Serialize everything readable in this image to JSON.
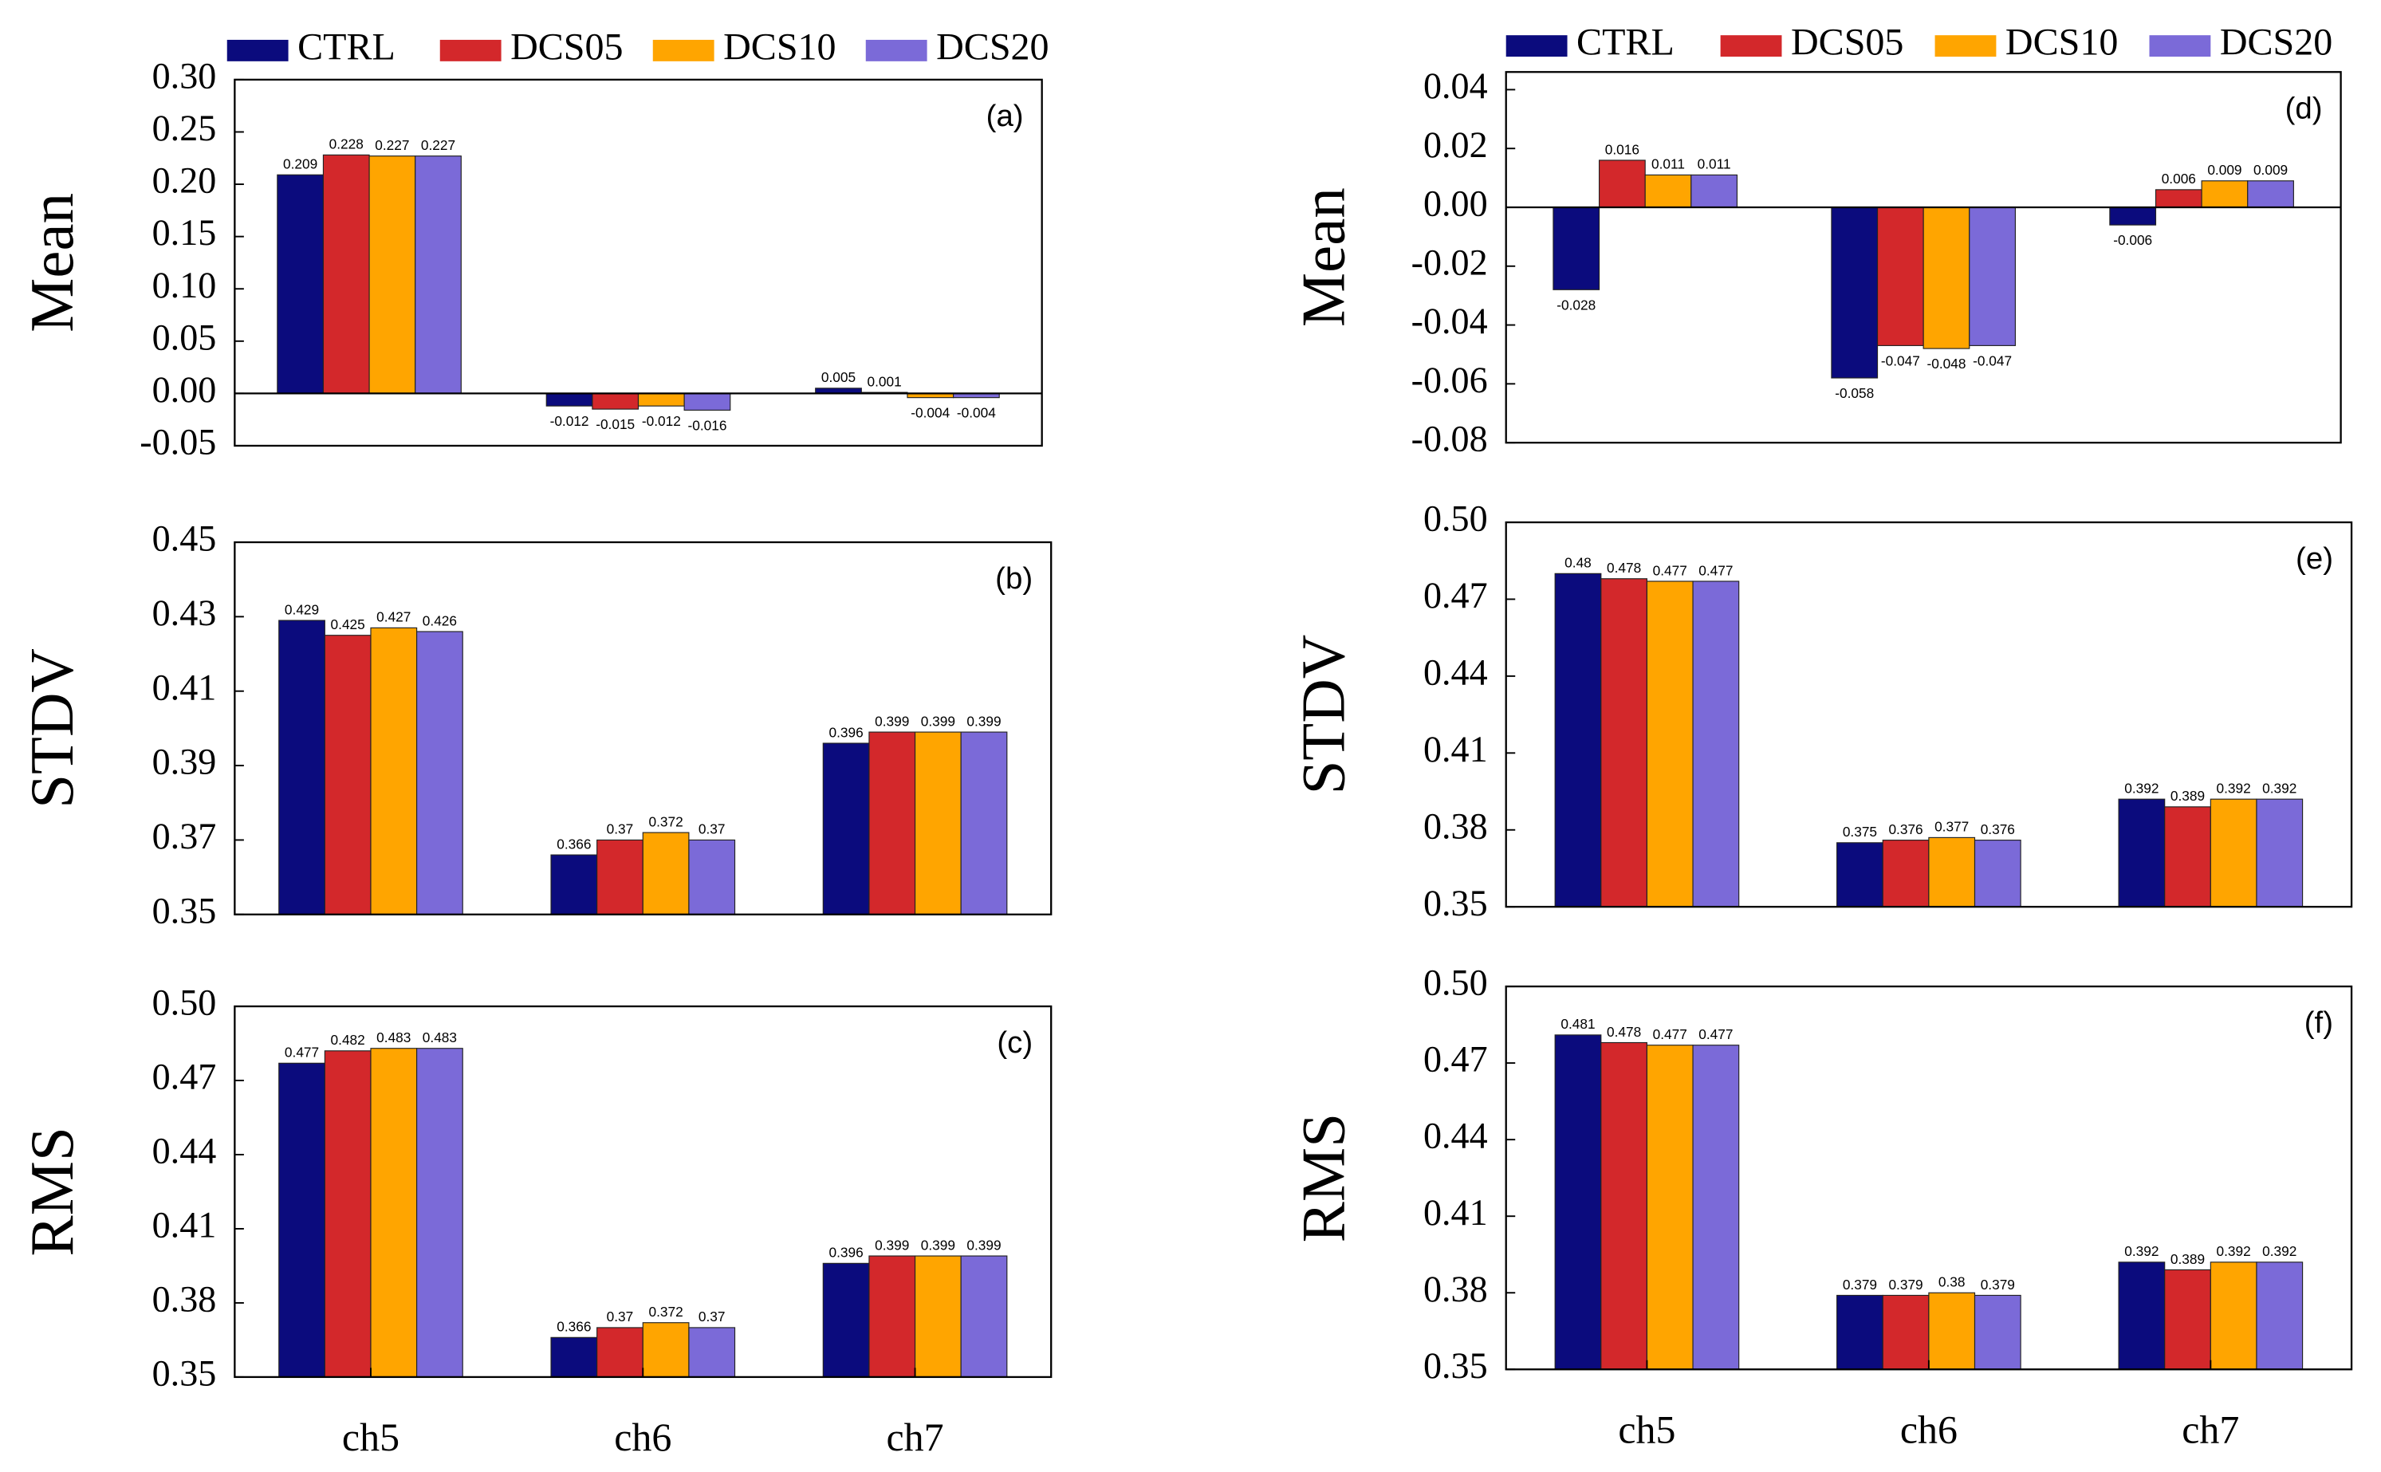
{
  "chart_data": [
    {
      "type": "bar",
      "panel_label": "(a)",
      "ylabel": "Mean",
      "series": [
        {
          "name": "CTRL",
          "color": "#0b0b7d",
          "values": [
            0.209,
            -0.012,
            0.005
          ]
        },
        {
          "name": "DCS05",
          "color": "#d3282b",
          "values": [
            0.228,
            -0.015,
            0.001
          ]
        },
        {
          "name": "DCS10",
          "color": "#ffa500",
          "values": [
            0.227,
            -0.012,
            -0.004
          ]
        },
        {
          "name": "DCS20",
          "color": "#7b6ad8",
          "values": [
            0.227,
            -0.016,
            -0.004
          ]
        }
      ],
      "ylim": [
        -0.05,
        0.3
      ],
      "yticks": [
        -0.05,
        {
          "value": 0,
          "label": "0.00"
        },
        0.05,
        {
          "value": 0.1,
          "label": "0.10"
        },
        0.15,
        {
          "value": 0.2,
          "label": "0.20"
        },
        0.25,
        {
          "value": 0.3,
          "label": "0.30"
        }
      ]
    },
    {
      "type": "bar",
      "panel_label": "(b)",
      "ylabel": "STDV",
      "series": [
        {
          "color": "#0b0b7d",
          "values": [
            0.429,
            0.366,
            0.396
          ]
        },
        {
          "color": "#d3282b",
          "values": [
            0.425,
            0.37,
            0.399
          ]
        },
        {
          "color": "#ffa500",
          "values": [
            0.427,
            0.372,
            0.399
          ]
        },
        {
          "color": "#7b6ad8",
          "values": [
            0.426,
            0.37,
            0.399
          ]
        }
      ],
      "ylim": [
        0.35,
        0.45
      ],
      "yticks": [
        0.35,
        0.37,
        0.39,
        0.41,
        0.43,
        0.45
      ]
    },
    {
      "type": "bar",
      "panel_label": "(c)",
      "ylabel": "RMS",
      "categories": [
        "ch5",
        "ch6",
        "ch7"
      ],
      "series": [
        {
          "color": "#0b0b7d",
          "values": [
            0.477,
            0.366,
            0.396
          ]
        },
        {
          "color": "#d3282b",
          "values": [
            0.482,
            0.37,
            0.399
          ]
        },
        {
          "color": "#ffa500",
          "values": [
            0.483,
            0.372,
            0.399
          ]
        },
        {
          "color": "#7b6ad8",
          "values": [
            0.483,
            0.37,
            0.399
          ]
        }
      ],
      "ylim": [
        0.35,
        0.5
      ],
      "yticks": [
        0.35,
        0.38,
        0.41,
        0.44,
        0.47,
        {
          "value": 0.5,
          "label": "0.50"
        }
      ]
    },
    {
      "type": "bar",
      "panel_label": "(d)",
      "ylabel": "Mean",
      "series": [
        {
          "name": "CTRL",
          "color": "#0b0b7d",
          "values": [
            -0.028,
            -0.058,
            -0.006
          ]
        },
        {
          "name": "DCS05",
          "color": "#d3282b",
          "values": [
            0.016,
            -0.047,
            0.006
          ]
        },
        {
          "name": "DCS10",
          "color": "#ffa500",
          "values": [
            0.011,
            -0.048,
            0.009
          ]
        },
        {
          "name": "DCS20",
          "color": "#7b6ad8",
          "values": [
            0.011,
            -0.047,
            0.009
          ]
        }
      ],
      "ylim": [
        -0.08,
        0.046
      ],
      "yticks": [
        -0.08,
        -0.06,
        -0.04,
        -0.02,
        {
          "value": 0,
          "label": "0.00"
        },
        0.02,
        0.04
      ]
    },
    {
      "type": "bar",
      "panel_label": "(e)",
      "ylabel": "STDV",
      "series": [
        {
          "color": "#0b0b7d",
          "values": [
            0.48,
            0.375,
            0.392
          ]
        },
        {
          "color": "#d3282b",
          "values": [
            0.478,
            0.376,
            0.389
          ]
        },
        {
          "color": "#ffa500",
          "values": [
            0.477,
            0.377,
            0.392
          ]
        },
        {
          "color": "#7b6ad8",
          "values": [
            0.477,
            0.376,
            0.392
          ]
        }
      ],
      "ylim": [
        0.35,
        0.5
      ],
      "yticks": [
        0.35,
        0.38,
        0.41,
        0.44,
        0.47,
        {
          "value": 0.5,
          "label": "0.50"
        }
      ]
    },
    {
      "type": "bar",
      "panel_label": "(f)",
      "ylabel": "RMS",
      "categories": [
        "ch5",
        "ch6",
        "ch7"
      ],
      "series": [
        {
          "color": "#0b0b7d",
          "values": [
            0.481,
            0.379,
            0.392
          ]
        },
        {
          "color": "#d3282b",
          "values": [
            0.478,
            0.379,
            0.389
          ]
        },
        {
          "color": "#ffa500",
          "values": [
            0.477,
            0.38,
            0.392
          ]
        },
        {
          "color": "#7b6ad8",
          "values": [
            0.477,
            0.379,
            0.392
          ]
        }
      ],
      "ylim": [
        0.35,
        0.5
      ],
      "yticks": [
        0.35,
        0.38,
        0.41,
        0.44,
        0.47,
        {
          "value": 0.5,
          "label": "0.50"
        }
      ]
    }
  ]
}
